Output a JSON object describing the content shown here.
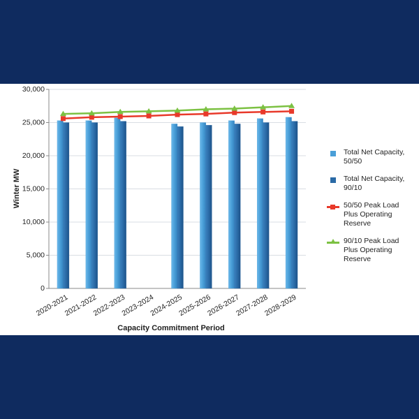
{
  "chart_data": {
    "type": "bar-line",
    "x_label": "Capacity Commitment Period",
    "y_label": "Winter MW",
    "categories": [
      "2020-2021",
      "2021-2022",
      "2022-2023",
      "2023-2024",
      "2024-2025",
      "2025-2026",
      "2026-2027",
      "2027-2028",
      "2028-2029"
    ],
    "series": [
      {
        "name": "Total Net Capacity, 50/50",
        "kind": "bar",
        "color": "#4a9fd8",
        "values": [
          25300,
          25300,
          25700,
          null,
          24800,
          25000,
          25300,
          25600,
          25800
        ]
      },
      {
        "name": "Total Net Capacity, 90/10",
        "kind": "bar",
        "color": "#2a6aa6",
        "values": [
          25000,
          25000,
          25200,
          null,
          24400,
          24600,
          24800,
          25000,
          25200
        ]
      },
      {
        "name": "50/50 Peak Load Plus Operating Reserve",
        "kind": "line",
        "marker": "square",
        "color": "#e8392a",
        "values": [
          25600,
          25800,
          25900,
          26000,
          26200,
          26300,
          26500,
          26600,
          26700
        ]
      },
      {
        "name": "90/10 Peak Load Plus Operating Reserve",
        "kind": "line",
        "marker": "triangle",
        "color": "#7cc142",
        "values": [
          26300,
          26400,
          26600,
          26700,
          26800,
          27000,
          27100,
          27300,
          27500
        ]
      }
    ],
    "ylim": [
      0,
      30000
    ],
    "yticks": [
      0,
      {
        "value": 5000,
        "label": "5,000"
      },
      {
        "value": 10000,
        "label": "10,000"
      },
      {
        "value": 15000,
        "label": "15,000"
      },
      {
        "value": 20000,
        "label": "20,000"
      },
      {
        "value": 25000,
        "label": "25,000"
      },
      {
        "value": 30000,
        "label": "30,000"
      }
    ],
    "grid": true,
    "legend": "right"
  }
}
